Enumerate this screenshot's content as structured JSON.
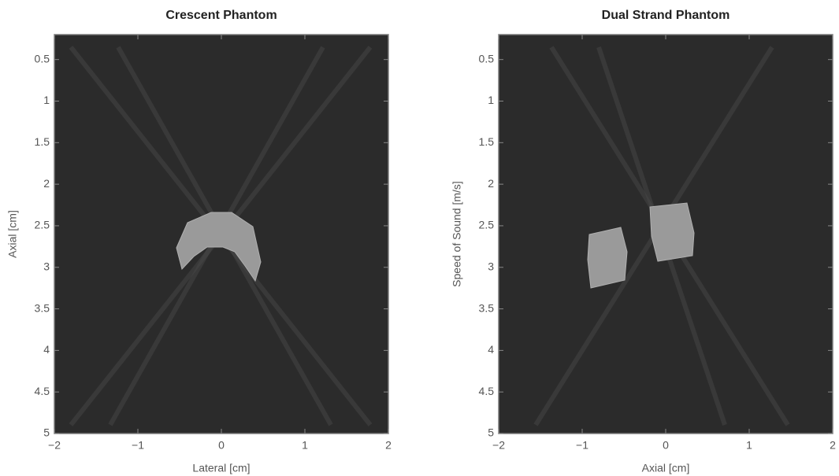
{
  "chart_data": [
    {
      "type": "image",
      "title": "Crescent Phantom",
      "xlabel": "Lateral [cm]",
      "ylabel": "Axial [cm]",
      "xlim": [
        -2,
        2
      ],
      "ylim": [
        5,
        0.2
      ],
      "xticks": [
        {
          "value": -2,
          "label": "−2"
        },
        {
          "value": -1,
          "label": "−1"
        },
        0,
        1,
        2
      ],
      "yticks": [
        0.5,
        1,
        1.5,
        2,
        2.5,
        3,
        3.5,
        4,
        4.5,
        5
      ]
    },
    {
      "type": "image",
      "title": "Dual Strand Phantom",
      "xlabel": "Axial [cm]",
      "ylabel": "Speed of Sound [m/s]",
      "xlim": [
        -2,
        2
      ],
      "ylim": [
        5,
        0.2
      ],
      "xticks": [
        {
          "value": -2,
          "label": "−2"
        },
        {
          "value": -1,
          "label": "−1"
        },
        0,
        1,
        2
      ],
      "yticks": [
        0.5,
        1,
        1.5,
        2,
        2.5,
        3,
        3.5,
        4,
        4.5,
        5
      ]
    }
  ]
}
